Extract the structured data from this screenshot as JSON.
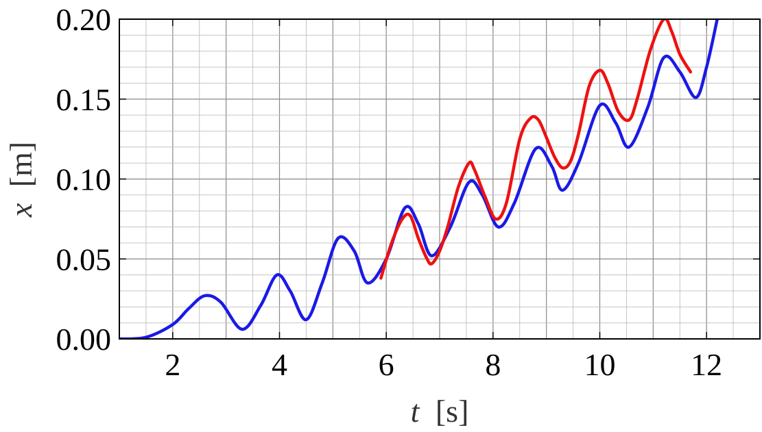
{
  "chart_data": {
    "type": "line",
    "title": "",
    "xlabel": {
      "symbol": "t",
      "unit": "[s]"
    },
    "ylabel": {
      "symbol": "x",
      "unit": "[m]"
    },
    "xlim": [
      1,
      13.0
    ],
    "ylim": [
      0,
      0.2
    ],
    "x_ticks": [
      2,
      4,
      6,
      8,
      10,
      12
    ],
    "x_tick_labels": [
      "2",
      "4",
      "6",
      "8",
      "10",
      "12"
    ],
    "y_ticks": [
      0.0,
      0.05,
      0.1,
      0.15,
      0.2
    ],
    "y_tick_labels": [
      "0.00",
      "0.05",
      "0.10",
      "0.15",
      "0.20"
    ],
    "grid": true,
    "series": [
      {
        "color": "#1a1ae6",
        "x": [
          1.0,
          1.5,
          2.0,
          2.3,
          2.6,
          2.9,
          3.3,
          3.65,
          3.95,
          4.2,
          4.5,
          4.8,
          5.1,
          5.4,
          5.65,
          6.0,
          6.35,
          6.6,
          6.85,
          7.2,
          7.55,
          7.8,
          8.1,
          8.4,
          8.8,
          9.1,
          9.3,
          9.6,
          10.0,
          10.3,
          10.55,
          10.9,
          11.2,
          11.5,
          11.8,
          12.0,
          12.2
        ],
        "y": [
          0.0,
          0.001,
          0.009,
          0.019,
          0.027,
          0.023,
          0.006,
          0.021,
          0.04,
          0.03,
          0.012,
          0.035,
          0.063,
          0.055,
          0.035,
          0.05,
          0.082,
          0.072,
          0.052,
          0.07,
          0.098,
          0.09,
          0.07,
          0.085,
          0.119,
          0.108,
          0.093,
          0.11,
          0.146,
          0.135,
          0.12,
          0.145,
          0.176,
          0.167,
          0.151,
          0.17,
          0.2
        ]
      },
      {
        "color": "#ee1111",
        "x": [
          5.9,
          6.1,
          6.3,
          6.45,
          6.6,
          6.75,
          6.85,
          7.0,
          7.15,
          7.35,
          7.55,
          7.65,
          7.85,
          8.05,
          8.25,
          8.5,
          8.7,
          8.85,
          9.0,
          9.15,
          9.3,
          9.45,
          9.6,
          9.8,
          10.0,
          10.15,
          10.35,
          10.55,
          10.7,
          10.95,
          11.2,
          11.35,
          11.5,
          11.7
        ],
        "y": [
          0.038,
          0.06,
          0.075,
          0.077,
          0.063,
          0.051,
          0.047,
          0.055,
          0.07,
          0.095,
          0.11,
          0.106,
          0.089,
          0.075,
          0.085,
          0.125,
          0.138,
          0.137,
          0.126,
          0.114,
          0.107,
          0.111,
          0.128,
          0.158,
          0.168,
          0.16,
          0.142,
          0.137,
          0.15,
          0.181,
          0.2,
          0.192,
          0.178,
          0.167
        ]
      }
    ]
  }
}
